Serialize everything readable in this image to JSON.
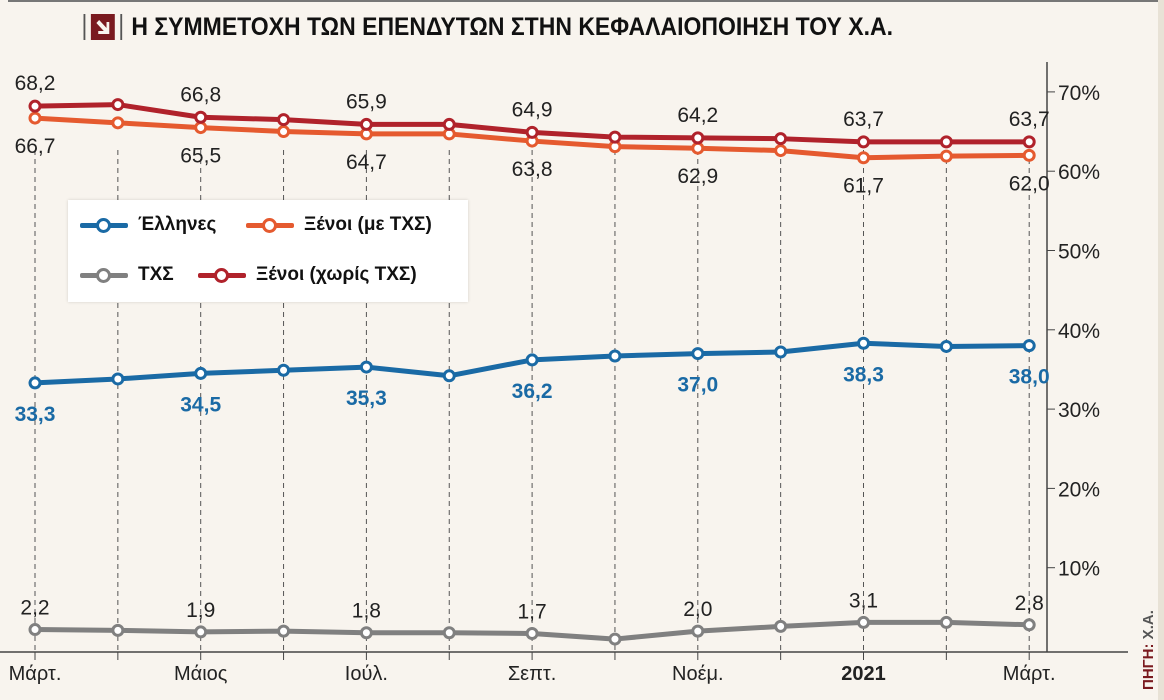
{
  "title": "Η ΣΥΜΜΕΤΟΧΗ ΤΩΝ ΕΠΕΝΔΥΤΩΝ ΣΤΗΝ ΚΕΦΑΛΑΙΟΠΟΙΗΣΗ ΤΟΥ Χ.Α.",
  "source": {
    "label": "ΠΗΓΗ:",
    "value": "Χ.Α."
  },
  "chart_data": {
    "type": "line",
    "title": "Η ΣΥΜΜΕΤΟΧΗ ΤΩΝ ΕΠΕΝΔΥΤΩΝ ΣΤΗΝ ΚΕΦΑΛΑΙΟΠΟΙΗΣΗ ΤΟΥ Χ.Α.",
    "x": [
      "2020-03",
      "2020-04",
      "2020-05",
      "2020-06",
      "2020-07",
      "2020-08",
      "2020-09",
      "2020-10",
      "2020-11",
      "2020-12",
      "2021-01",
      "2021-02",
      "2021-03"
    ],
    "x_tick_labels": [
      "Μάρτ.",
      "",
      "Μάιος",
      "",
      "Ιούλ.",
      "",
      "Σεπτ.",
      "",
      "Νοέμ.",
      "",
      "2021",
      "",
      "Μάρτ."
    ],
    "ylim": [
      0,
      72
    ],
    "y_ticks": [
      10,
      20,
      30,
      40,
      50,
      60,
      70
    ],
    "y_tick_labels": [
      "10%",
      "20%",
      "30%",
      "40%",
      "50%",
      "60%",
      "70%"
    ],
    "y_axis_position": "right",
    "legend_position": "left-middle",
    "series": [
      {
        "name": "Έλληνες",
        "color": "#1a6aa5",
        "values": [
          33.3,
          33.8,
          34.5,
          34.9,
          35.3,
          34.2,
          36.2,
          36.7,
          37.0,
          37.2,
          38.3,
          37.9,
          38.0
        ],
        "labels": [
          "33,3",
          "",
          "34,5",
          "",
          "35,3",
          "",
          "36,2",
          "",
          "37,0",
          "",
          "38,3",
          "",
          "38,0"
        ],
        "label_side": "below",
        "bold": true
      },
      {
        "name": "Ξένοι (με ΤΧΣ)",
        "color": "#e55a2f",
        "values": [
          66.7,
          66.1,
          65.5,
          65.0,
          64.7,
          64.7,
          63.8,
          63.1,
          62.9,
          62.6,
          61.7,
          61.9,
          62.0
        ],
        "labels": [
          "66,7",
          "",
          "65,5",
          "",
          "64,7",
          "",
          "63,8",
          "",
          "62,9",
          "",
          "61,7",
          "",
          "62,0"
        ],
        "label_side": "below"
      },
      {
        "name": "ΤΧΣ",
        "color": "#808080",
        "values": [
          2.2,
          2.1,
          1.9,
          2.0,
          1.8,
          1.8,
          1.7,
          1.0,
          2.0,
          2.6,
          3.1,
          3.1,
          2.8
        ],
        "labels": [
          "2,2",
          "",
          "1,9",
          "",
          "1,8",
          "",
          "1,7",
          "",
          "2,0",
          "",
          "3,1",
          "",
          "2,8"
        ],
        "label_side": "above"
      },
      {
        "name": "Ξένοι (χωρίς ΤΧΣ)",
        "color": "#b0222b",
        "values": [
          68.2,
          68.4,
          66.8,
          66.5,
          65.9,
          65.9,
          64.9,
          64.3,
          64.2,
          64.1,
          63.7,
          63.7,
          63.7
        ],
        "labels": [
          "68,2",
          "",
          "66,8",
          "",
          "65,9",
          "",
          "64,9",
          "",
          "64,2",
          "",
          "63,7",
          "",
          "63,7"
        ],
        "label_side": "above"
      }
    ]
  }
}
